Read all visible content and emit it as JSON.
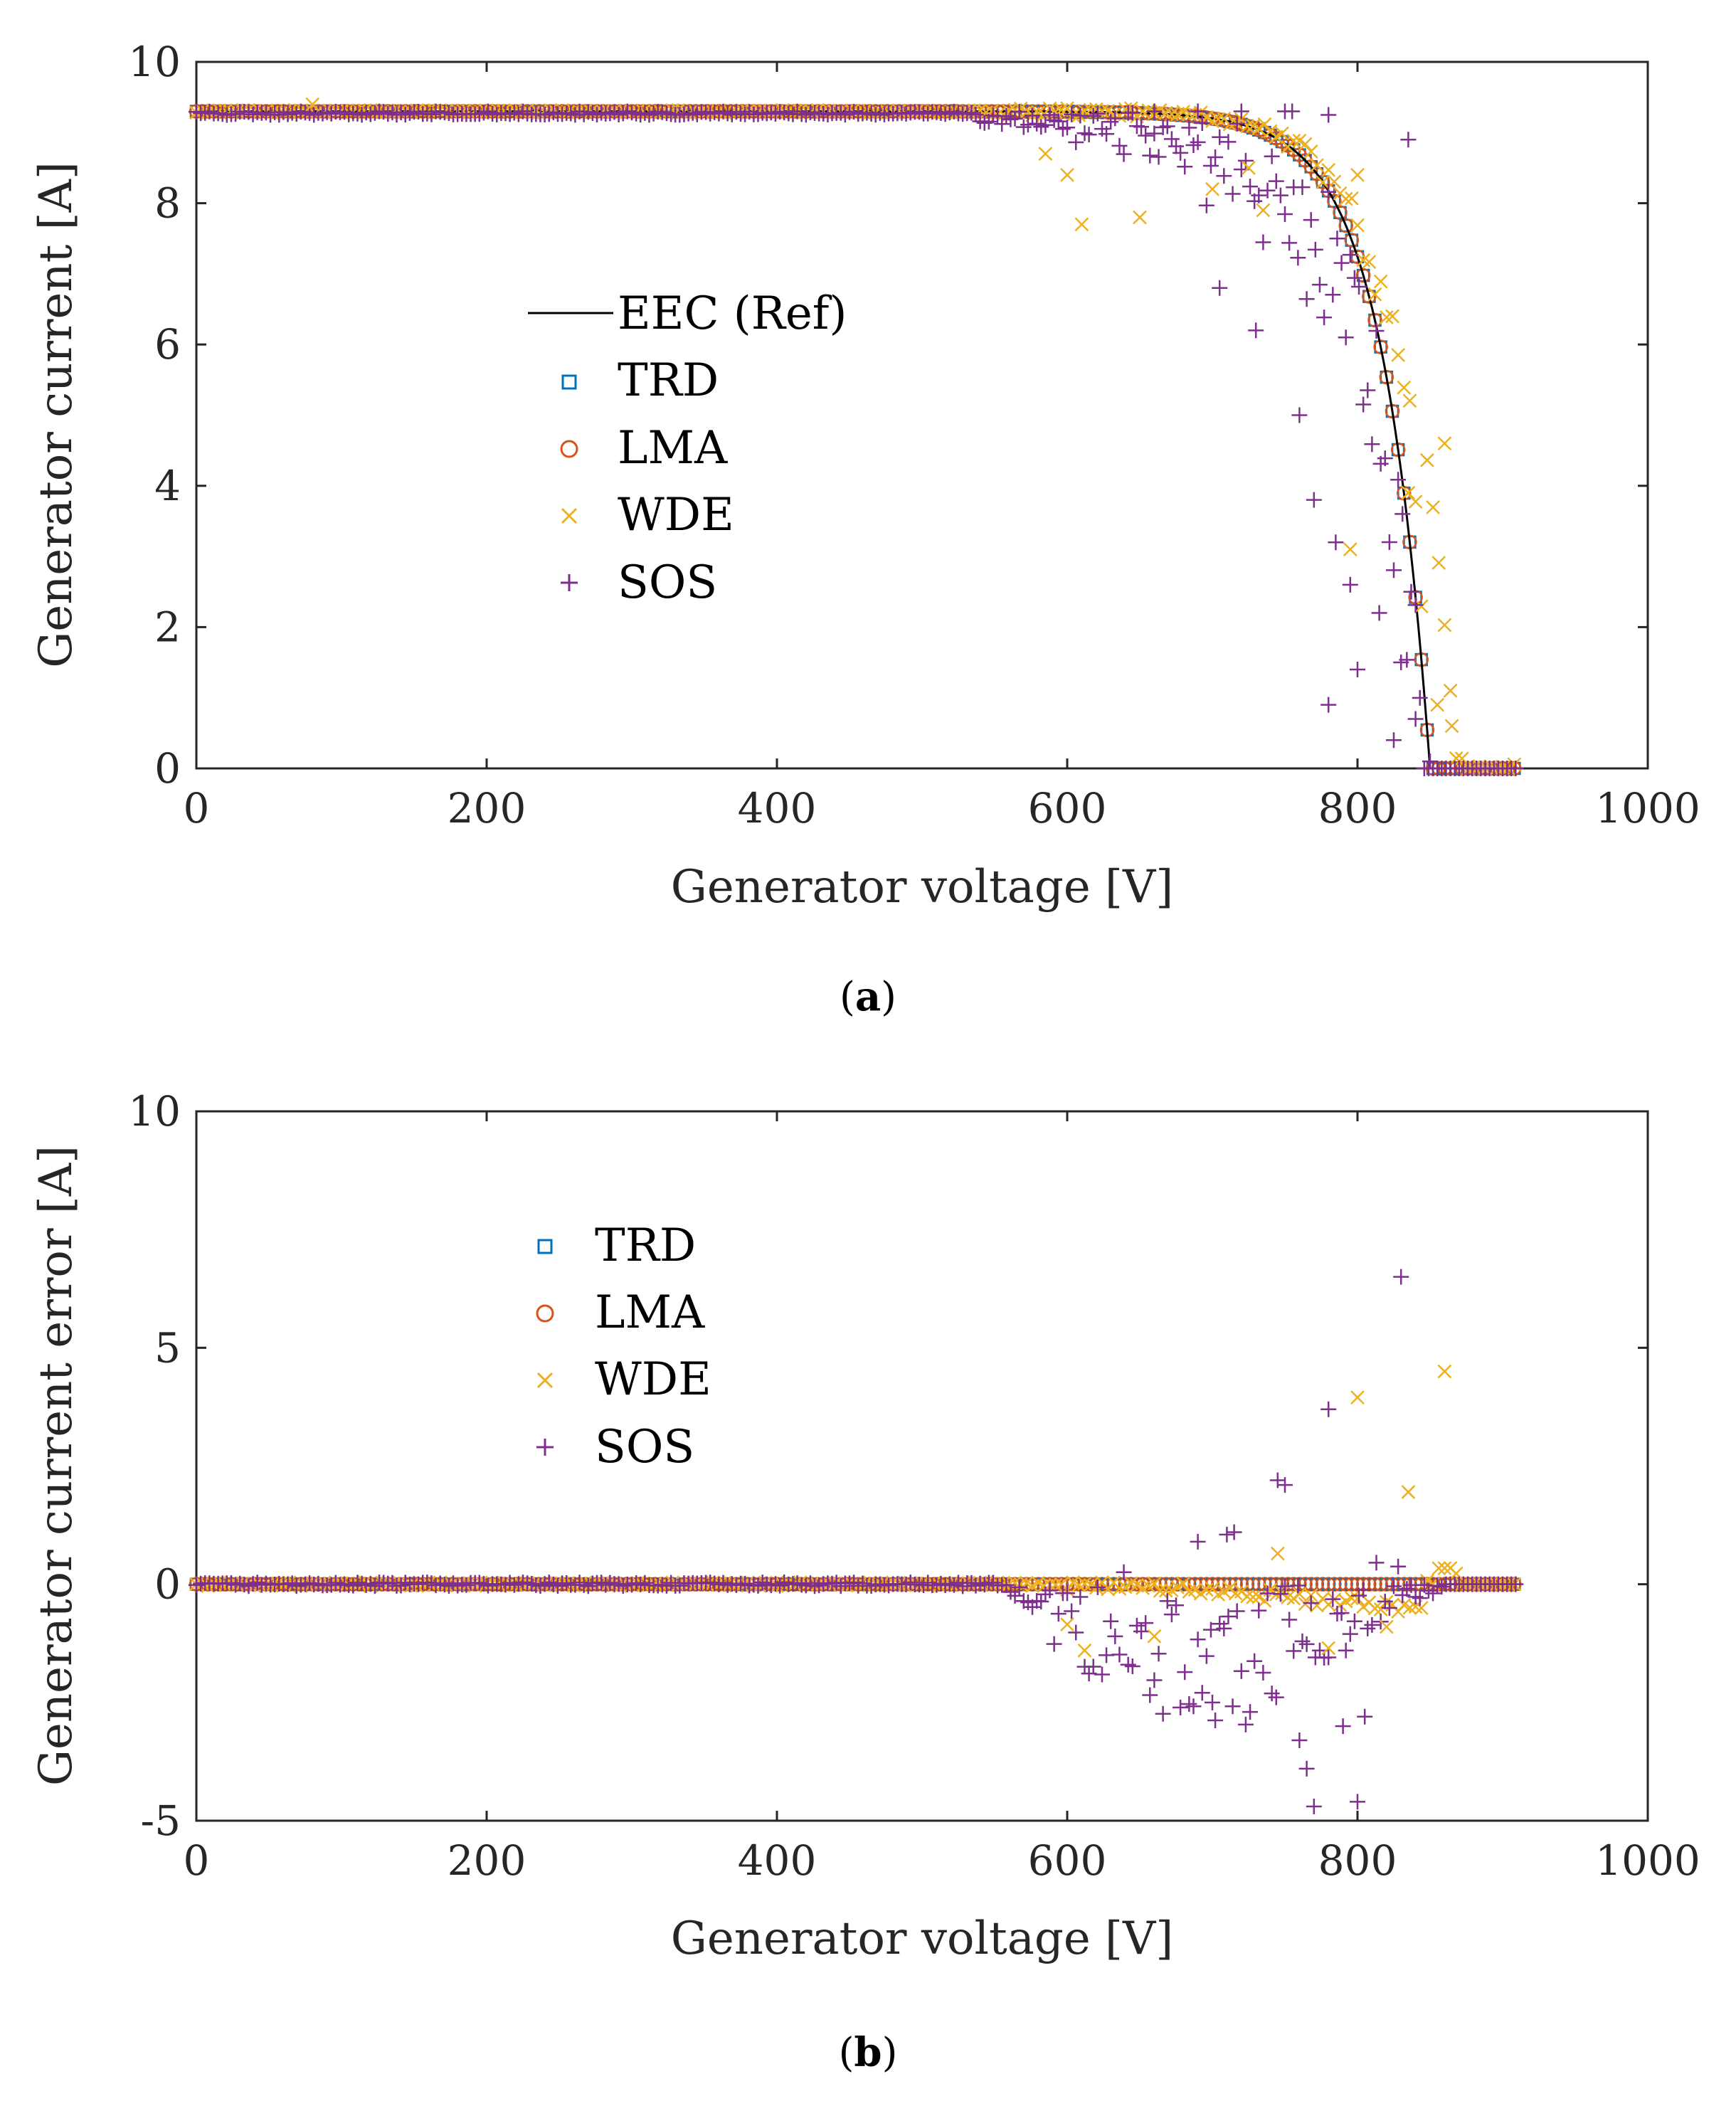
{
  "chart_data": [
    {
      "panel": "a",
      "caption": {
        "open": "(",
        "letter": "a",
        "close": ")"
      },
      "type": "scatter",
      "xlabel": "Generator voltage [V]",
      "ylabel": "Generator current [A]",
      "xlim": [
        0,
        1000
      ],
      "ylim": [
        0,
        10
      ],
      "xticks": [
        "0",
        "200",
        "400",
        "600",
        "800",
        "1000"
      ],
      "yticks": [
        "0",
        "2",
        "4",
        "6",
        "8",
        "10"
      ],
      "isc": 9.3,
      "voc": 850,
      "vmax": 910,
      "legend": [
        "EEC (Ref)",
        "TRD",
        "LMA",
        "WDE",
        "SOS"
      ],
      "colors": {
        "eec": "#000000",
        "trd": "#0072BD",
        "lma": "#D95319",
        "wde": "#EDB120",
        "sos": "#7E2F8E"
      },
      "sos_outliers": [
        [
          660,
          9.3
        ],
        [
          690,
          9.3
        ],
        [
          720,
          9.3
        ],
        [
          750,
          9.3
        ],
        [
          755,
          9.3
        ],
        [
          780,
          9.25
        ],
        [
          835,
          8.9
        ],
        [
          705,
          6.8
        ],
        [
          730,
          6.2
        ],
        [
          760,
          5.0
        ],
        [
          770,
          3.8
        ],
        [
          785,
          3.2
        ],
        [
          795,
          2.6
        ],
        [
          800,
          1.4
        ],
        [
          780,
          0.9
        ],
        [
          815,
          2.2
        ],
        [
          830,
          1.5
        ],
        [
          840,
          0.7
        ],
        [
          825,
          0.4
        ],
        [
          850,
          0.1
        ]
      ],
      "wde_outliers": [
        [
          80,
          9.4
        ],
        [
          585,
          8.7
        ],
        [
          600,
          8.4
        ],
        [
          610,
          7.7
        ],
        [
          650,
          7.8
        ],
        [
          700,
          8.2
        ],
        [
          725,
          8.5
        ],
        [
          735,
          7.9
        ],
        [
          800,
          8.4
        ],
        [
          860,
          4.6
        ],
        [
          835,
          3.9
        ],
        [
          795,
          3.1
        ],
        [
          855,
          0.9
        ],
        [
          865,
          0.6
        ]
      ]
    },
    {
      "panel": "b",
      "caption": {
        "open": "(",
        "letter": "b",
        "close": ")"
      },
      "type": "scatter",
      "xlabel": "Generator voltage [V]",
      "ylabel": "Generator current error [A]",
      "xlim": [
        0,
        1000
      ],
      "ylim": [
        -5,
        10
      ],
      "xticks": [
        "0",
        "200",
        "400",
        "600",
        "800",
        "1000"
      ],
      "yticks": [
        "-5",
        "0",
        "5",
        "10"
      ],
      "legend": [
        "TRD",
        "LMA",
        "WDE",
        "SOS"
      ],
      "colors": {
        "trd": "#0072BD",
        "lma": "#D95319",
        "wde": "#EDB120",
        "sos": "#7E2F8E"
      },
      "sos_outliers": [
        [
          830,
          6.5
        ],
        [
          780,
          3.7
        ],
        [
          745,
          2.2
        ],
        [
          750,
          2.1
        ],
        [
          710,
          1.05
        ],
        [
          715,
          1.1
        ],
        [
          690,
          0.9
        ],
        [
          800,
          -4.6
        ],
        [
          770,
          -4.7
        ],
        [
          765,
          -3.9
        ],
        [
          790,
          -3.0
        ],
        [
          760,
          -3.3
        ],
        [
          805,
          -2.8
        ],
        [
          700,
          -2.5
        ]
      ],
      "wde_outliers": [
        [
          800,
          3.95
        ],
        [
          860,
          4.5
        ],
        [
          835,
          1.95
        ],
        [
          745,
          0.65
        ],
        [
          612,
          -1.4
        ],
        [
          660,
          -1.1
        ],
        [
          600,
          -0.85
        ],
        [
          780,
          -1.35
        ],
        [
          820,
          -0.9
        ]
      ]
    }
  ]
}
